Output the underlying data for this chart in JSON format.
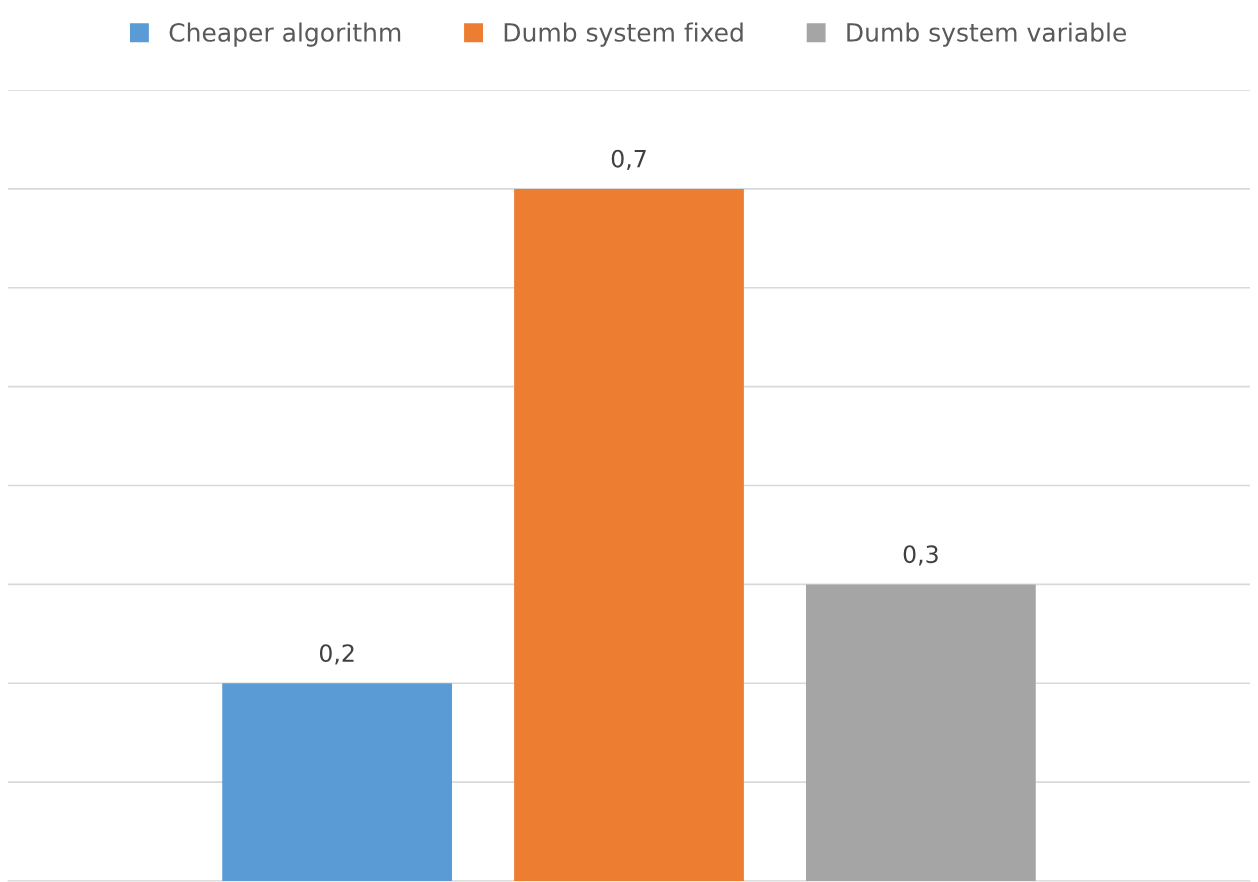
{
  "chart_data": {
    "type": "bar",
    "categories": [
      null
    ],
    "series": [
      {
        "name": "Cheaper algorithm",
        "color": "#5b9bd5",
        "values": [
          0.2
        ],
        "value_labels": [
          "0,2"
        ]
      },
      {
        "name": "Dumb system fixed",
        "color": "#ed7d31",
        "values": [
          0.7
        ],
        "value_labels": [
          "0,7"
        ]
      },
      {
        "name": "Dumb system variable",
        "color": "#a5a5a5",
        "values": [
          0.3
        ],
        "value_labels": [
          "0,3"
        ]
      }
    ],
    "ylim": [
      0,
      0.8
    ],
    "yticks": [
      {
        "value": 0,
        "label": null
      },
      {
        "value": 0.1,
        "label": null
      },
      {
        "value": 0.2,
        "label": null
      },
      {
        "value": 0.3,
        "label": null
      },
      {
        "value": 0.4,
        "label": null
      },
      {
        "value": 0.5,
        "label": null
      },
      {
        "value": 0.6,
        "label": null
      },
      {
        "value": 0.7,
        "label": null
      },
      {
        "value": 0.8,
        "label": null
      }
    ],
    "grid": "y",
    "legend": "top"
  }
}
